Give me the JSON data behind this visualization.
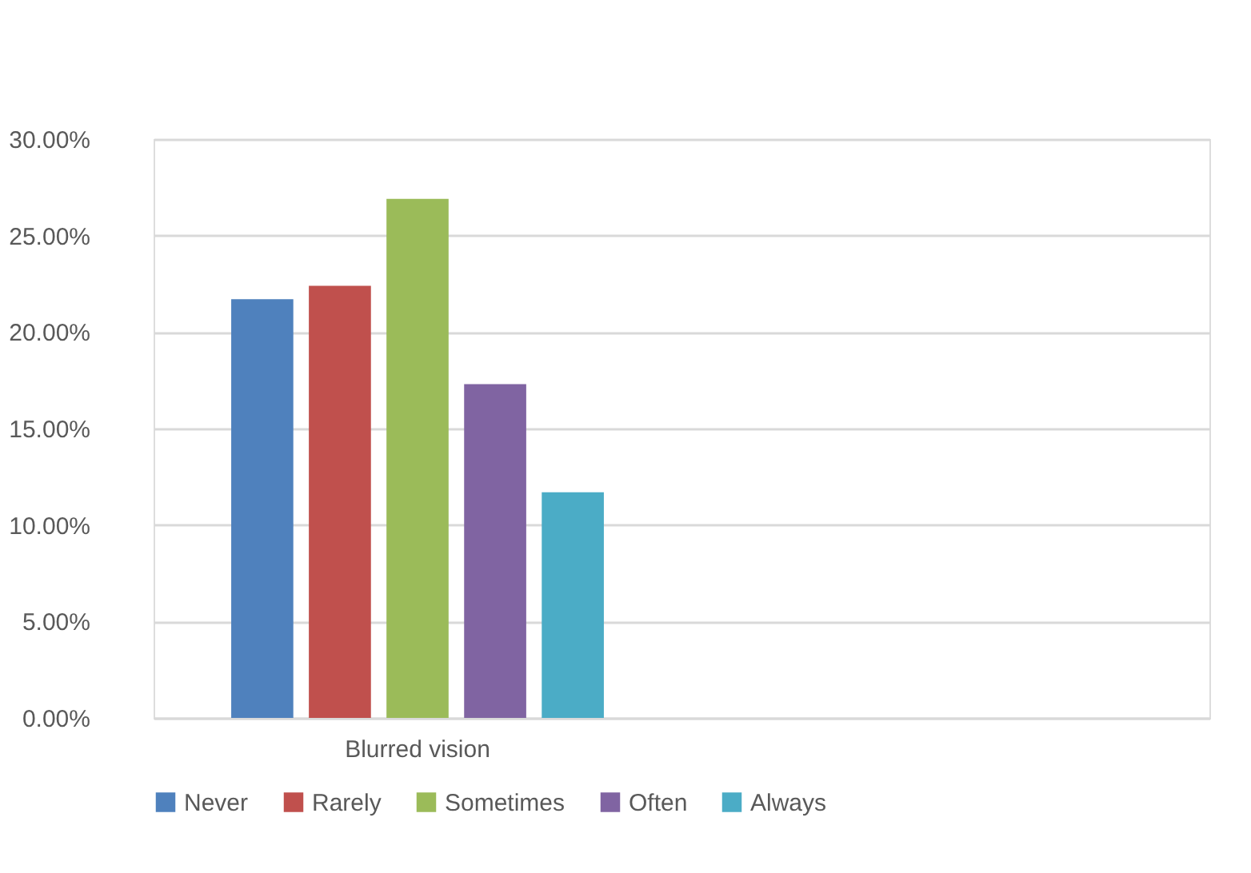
{
  "chart_data": {
    "type": "bar",
    "categories": [
      "Blurred vision",
      null
    ],
    "series": [
      {
        "name": "Never",
        "color": "#4f81bd",
        "values": [
          21.7,
          null
        ]
      },
      {
        "name": "Rarely",
        "color": "#c0504d",
        "values": [
          22.4,
          null
        ]
      },
      {
        "name": "Sometimes",
        "color": "#9bbb59",
        "values": [
          26.9,
          null
        ]
      },
      {
        "name": "Often",
        "color": "#8064a2",
        "values": [
          17.3,
          null
        ]
      },
      {
        "name": "Always",
        "color": "#4bacc6",
        "values": [
          11.7,
          null
        ]
      }
    ],
    "ylim": [
      0,
      30
    ],
    "yticks": [
      {
        "value": 0,
        "label": "0.00%"
      },
      {
        "value": 5,
        "label": "5.00%"
      },
      {
        "value": 10,
        "label": "10.00%"
      },
      {
        "value": 15,
        "label": "15.00%"
      },
      {
        "value": 20,
        "label": "20.00%"
      },
      {
        "value": 25,
        "label": "25.00%"
      },
      {
        "value": 30,
        "label": "30.00%"
      }
    ],
    "grid": "y",
    "legend": "bottom"
  }
}
